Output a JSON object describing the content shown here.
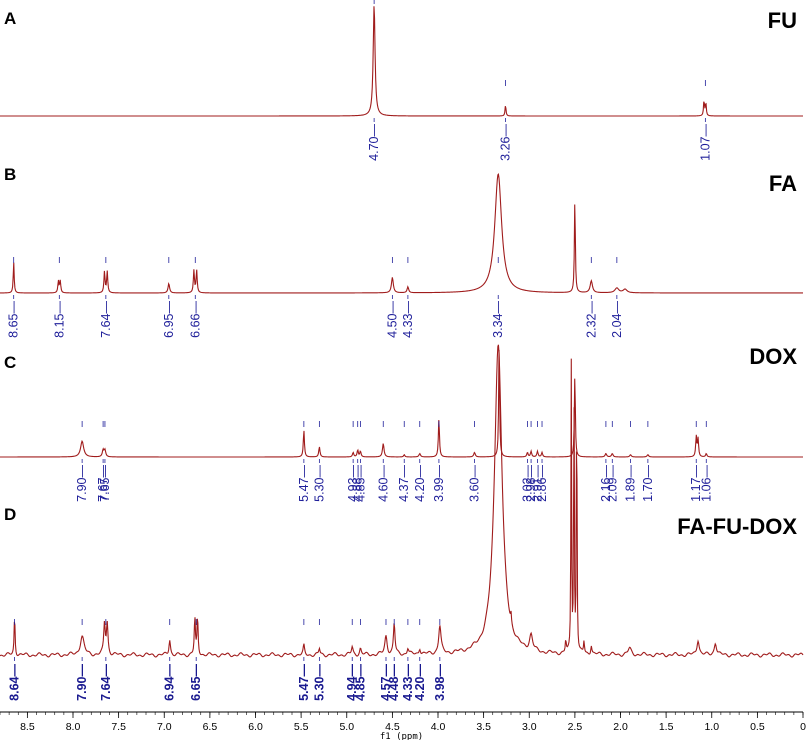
{
  "chart_data": [
    {
      "type": "line",
      "panel": "A",
      "title": "FU",
      "peak_labels": [
        "4.70",
        "3.26",
        "1.07"
      ],
      "peaks": [
        {
          "ppm": 4.7,
          "height": 1.0,
          "width": 0.012
        },
        {
          "ppm": 3.26,
          "height": 0.1,
          "width": 0.006
        },
        {
          "ppm": 1.085,
          "height": 0.14,
          "width": 0.006
        },
        {
          "ppm": 1.065,
          "height": 0.12,
          "width": 0.006
        }
      ],
      "colors": {
        "line": "#a01c1c",
        "labels": "#1f1f9a"
      }
    },
    {
      "type": "line",
      "panel": "B",
      "title": "FA",
      "peak_labels": [
        "8.65",
        "8.15",
        "7.64",
        "6.95",
        "6.66",
        "4.50",
        "4.33",
        "3.34",
        "2.32",
        "2.04"
      ],
      "peaks": [
        {
          "ppm": 8.65,
          "height": 0.26,
          "width": 0.006
        },
        {
          "ppm": 8.16,
          "height": 0.1,
          "width": 0.007
        },
        {
          "ppm": 8.14,
          "height": 0.1,
          "width": 0.007
        },
        {
          "ppm": 7.655,
          "height": 0.18,
          "width": 0.007
        },
        {
          "ppm": 7.625,
          "height": 0.18,
          "width": 0.007
        },
        {
          "ppm": 6.95,
          "height": 0.08,
          "width": 0.01
        },
        {
          "ppm": 6.675,
          "height": 0.19,
          "width": 0.007
        },
        {
          "ppm": 6.645,
          "height": 0.19,
          "width": 0.007
        },
        {
          "ppm": 4.5,
          "height": 0.13,
          "width": 0.012
        },
        {
          "ppm": 4.33,
          "height": 0.05,
          "width": 0.01
        },
        {
          "ppm": 3.34,
          "height": 1.0,
          "width": 0.045
        },
        {
          "ppm": 2.5,
          "height": 0.8,
          "width": 0.006
        },
        {
          "ppm": 2.32,
          "height": 0.1,
          "width": 0.015
        },
        {
          "ppm": 2.04,
          "height": 0.04,
          "width": 0.025
        },
        {
          "ppm": 1.95,
          "height": 0.03,
          "width": 0.025
        }
      ],
      "colors": {
        "line": "#a01c1c",
        "labels": "#1f1f9a"
      }
    },
    {
      "type": "line",
      "panel": "C",
      "title": "DOX",
      "peak_labels": [
        "7.90",
        "7.67",
        "7.65",
        "5.47",
        "5.30",
        "4.93",
        "4.88",
        "4.85",
        "4.60",
        "4.37",
        "4.20",
        "3.99",
        "3.60",
        "3.02",
        "2.98",
        "2.91",
        "2.86",
        "2.16",
        "2.09",
        "1.89",
        "1.70",
        "1.17",
        "1.06"
      ],
      "peaks": [
        {
          "ppm": 7.9,
          "height": 0.14,
          "width": 0.02
        },
        {
          "ppm": 7.67,
          "height": 0.06,
          "width": 0.01
        },
        {
          "ppm": 7.65,
          "height": 0.06,
          "width": 0.01
        },
        {
          "ppm": 5.47,
          "height": 0.24,
          "width": 0.007
        },
        {
          "ppm": 5.3,
          "height": 0.09,
          "width": 0.008
        },
        {
          "ppm": 4.93,
          "height": 0.04,
          "width": 0.008
        },
        {
          "ppm": 4.88,
          "height": 0.06,
          "width": 0.008
        },
        {
          "ppm": 4.85,
          "height": 0.05,
          "width": 0.008
        },
        {
          "ppm": 4.6,
          "height": 0.12,
          "width": 0.01
        },
        {
          "ppm": 4.37,
          "height": 0.02,
          "width": 0.008
        },
        {
          "ppm": 4.2,
          "height": 0.03,
          "width": 0.01
        },
        {
          "ppm": 3.99,
          "height": 0.34,
          "width": 0.007
        },
        {
          "ppm": 3.6,
          "height": 0.04,
          "width": 0.01
        },
        {
          "ppm": 3.33,
          "height": 1.0,
          "width": 0.006
        },
        {
          "ppm": 3.02,
          "height": 0.04,
          "width": 0.008
        },
        {
          "ppm": 2.98,
          "height": 0.05,
          "width": 0.008
        },
        {
          "ppm": 2.91,
          "height": 0.05,
          "width": 0.008
        },
        {
          "ppm": 2.86,
          "height": 0.04,
          "width": 0.008
        },
        {
          "ppm": 2.5,
          "height": 0.75,
          "width": 0.006
        },
        {
          "ppm": 2.16,
          "height": 0.03,
          "width": 0.01
        },
        {
          "ppm": 2.09,
          "height": 0.03,
          "width": 0.01
        },
        {
          "ppm": 1.89,
          "height": 0.02,
          "width": 0.01
        },
        {
          "ppm": 1.7,
          "height": 0.02,
          "width": 0.01
        },
        {
          "ppm": 1.17,
          "height": 0.18,
          "width": 0.007
        },
        {
          "ppm": 1.15,
          "height": 0.16,
          "width": 0.007
        },
        {
          "ppm": 1.06,
          "height": 0.03,
          "width": 0.008
        }
      ],
      "colors": {
        "line": "#a01c1c",
        "labels": "#1f1f9a"
      }
    },
    {
      "type": "line",
      "panel": "D",
      "title": "FA-FU-DOX",
      "peak_labels": [
        "8.64",
        "7.90",
        "7.64",
        "6.94",
        "6.65",
        "5.47",
        "5.30",
        "4.94",
        "4.85",
        "4.57",
        "4.48",
        "4.33",
        "4.20",
        "3.98"
      ],
      "peaks": [
        {
          "ppm": 8.64,
          "height": 0.13,
          "width": 0.006
        },
        {
          "ppm": 7.9,
          "height": 0.06,
          "width": 0.025
        },
        {
          "ppm": 7.655,
          "height": 0.1,
          "width": 0.01
        },
        {
          "ppm": 7.625,
          "height": 0.1,
          "width": 0.01
        },
        {
          "ppm": 6.94,
          "height": 0.05,
          "width": 0.01
        },
        {
          "ppm": 6.665,
          "height": 0.12,
          "width": 0.007
        },
        {
          "ppm": 6.635,
          "height": 0.12,
          "width": 0.007
        },
        {
          "ppm": 5.47,
          "height": 0.03,
          "width": 0.008
        },
        {
          "ppm": 5.3,
          "height": 0.02,
          "width": 0.008
        },
        {
          "ppm": 4.94,
          "height": 0.025,
          "width": 0.01
        },
        {
          "ppm": 4.85,
          "height": 0.02,
          "width": 0.01
        },
        {
          "ppm": 4.57,
          "height": 0.06,
          "width": 0.015
        },
        {
          "ppm": 4.48,
          "height": 0.1,
          "width": 0.01
        },
        {
          "ppm": 4.33,
          "height": 0.02,
          "width": 0.01
        },
        {
          "ppm": 4.2,
          "height": 0.02,
          "width": 0.01
        },
        {
          "ppm": 3.98,
          "height": 0.09,
          "width": 0.015
        },
        {
          "ppm": 3.34,
          "height": 1.0,
          "width": 0.05
        },
        {
          "ppm": 3.2,
          "height": 0.03,
          "width": 0.005
        },
        {
          "ppm": 2.98,
          "height": 0.05,
          "width": 0.02
        },
        {
          "ppm": 2.6,
          "height": 0.04,
          "width": 0.006
        },
        {
          "ppm": 2.54,
          "height": 0.95,
          "width": 0.004
        },
        {
          "ppm": 2.51,
          "height": 0.95,
          "width": 0.004
        },
        {
          "ppm": 2.48,
          "height": 0.95,
          "width": 0.004
        },
        {
          "ppm": 2.4,
          "height": 0.04,
          "width": 0.006
        },
        {
          "ppm": 2.32,
          "height": 0.03,
          "width": 0.008
        },
        {
          "ppm": 1.9,
          "height": 0.02,
          "width": 0.02
        },
        {
          "ppm": 1.15,
          "height": 0.05,
          "width": 0.015
        },
        {
          "ppm": 0.96,
          "height": 0.04,
          "width": 0.015
        }
      ],
      "colors": {
        "line": "#a01c1c",
        "labels": "#1a1a90"
      }
    }
  ],
  "axis": {
    "label": "f1 (ppm)",
    "xlim": [
      8.8,
      0
    ],
    "ticks": [
      "8.5",
      "8.0",
      "7.5",
      "7.0",
      "6.5",
      "6.0",
      "5.5",
      "5.0",
      "4.5",
      "4.0",
      "3.5",
      "3.0",
      "2.5",
      "2.0",
      "1.5",
      "1.0",
      "0.5",
      "0"
    ],
    "reversed": true
  }
}
